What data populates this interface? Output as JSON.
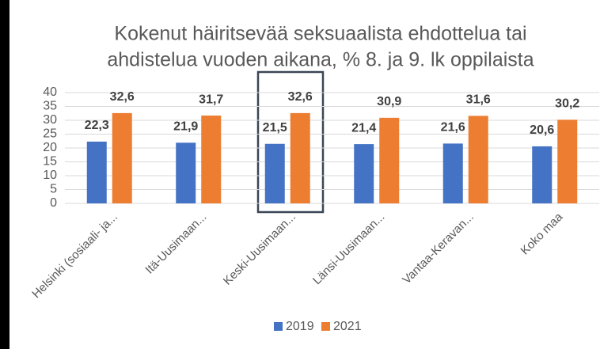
{
  "chart_data": {
    "type": "bar",
    "title": [
      "Kokenut häiritsevää seksuaalista ehdottelua tai",
      "ahdistelua vuoden aikana, % 8. ja 9. lk oppilaista"
    ],
    "categories": [
      "Helsinki (sosiaali- ja...",
      "Itä-Uusimaan...",
      "Keski-Uusimaan...",
      "Länsi-Uusimaan...",
      "Vantaa-Keravan...",
      "Koko maa"
    ],
    "series": [
      {
        "name": "2019",
        "color": "#4472c4",
        "values": [
          22.3,
          21.9,
          21.5,
          21.4,
          21.6,
          20.6
        ],
        "value_labels": [
          "22,3",
          "21,9",
          "21,5",
          "21,4",
          "21,6",
          "20,6"
        ]
      },
      {
        "name": "2021",
        "color": "#ed7d31",
        "values": [
          32.6,
          31.7,
          32.6,
          30.9,
          31.6,
          30.2
        ],
        "value_labels": [
          "32,6",
          "31,7",
          "32,6",
          "30,9",
          "31,6",
          "30,2"
        ]
      }
    ],
    "ylim": [
      0,
      40
    ],
    "yticks": [
      0,
      5,
      10,
      15,
      20,
      25,
      30,
      35,
      40
    ],
    "grid": true,
    "legend": "bottom"
  }
}
